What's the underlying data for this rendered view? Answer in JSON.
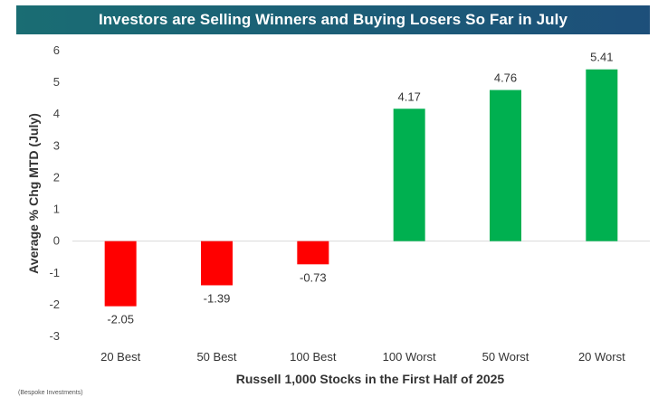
{
  "title": "Investors are Selling Winners and Buying Losers So Far in July",
  "footnote": "(Bespoke Investments)",
  "colors": {
    "banner_start": "#1a6d73",
    "banner_end": "#1d4f7a",
    "positive": "#00b050",
    "negative": "#ff0000"
  },
  "chart_data": {
    "type": "bar",
    "title": "Investors are Selling Winners and Buying Losers So Far in July",
    "xlabel": "Russell 1,000 Stocks in the First Half of 2025",
    "ylabel": "Average % Chg MTD (July)",
    "categories": [
      "20 Best",
      "50 Best",
      "100 Best",
      "100 Worst",
      "50 Worst",
      "20 Worst"
    ],
    "values": [
      -2.05,
      -1.39,
      -0.73,
      4.17,
      4.76,
      5.41
    ],
    "data_labels": [
      "-2.05",
      "-1.39",
      "-0.73",
      "4.17",
      "4.76",
      "5.41"
    ],
    "ylim": [
      -3,
      6
    ],
    "yticks": [
      6,
      5,
      4,
      3,
      2,
      1,
      0,
      -1,
      -2,
      -3
    ],
    "grid": false,
    "legend": "none"
  }
}
